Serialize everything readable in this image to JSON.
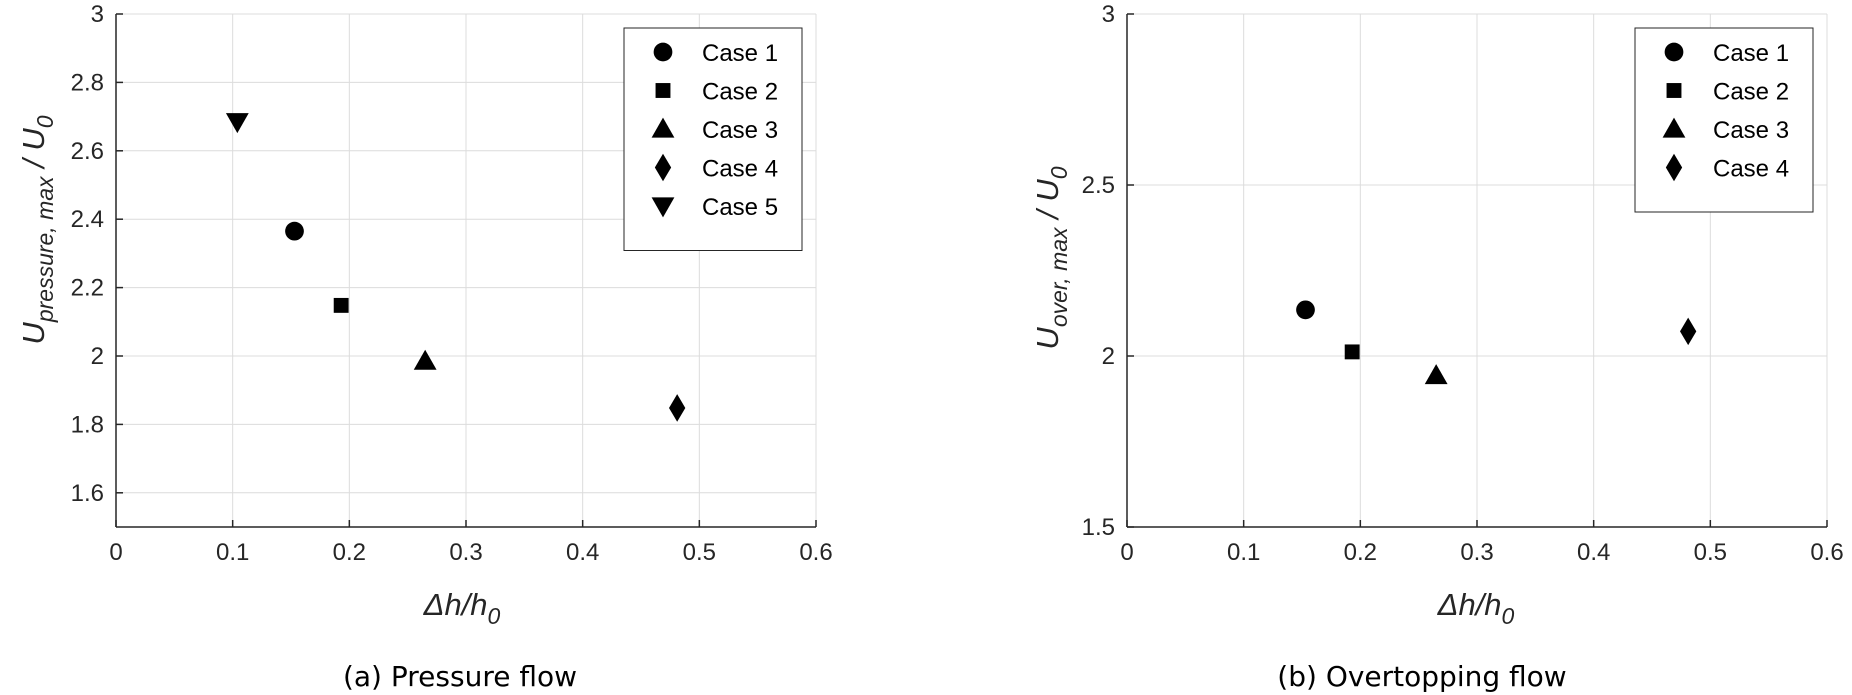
{
  "chart_data": [
    {
      "type": "scatter",
      "caption": "(a) Pressure flow",
      "xlabel": {
        "main": "Δh/h",
        "sub": "0"
      },
      "ylabel": {
        "main": "U",
        "sub": "pressure, max",
        "tail": " / U",
        "tail_sub": "0"
      },
      "xlim": [
        0,
        0.6
      ],
      "ylim": [
        1.5,
        3.0
      ],
      "xticks": [
        0,
        0.1,
        0.2,
        0.3,
        0.4,
        0.5,
        0.6
      ],
      "xtick_labels": [
        "0",
        "0.1",
        "0.2",
        "0.3",
        "0.4",
        "0.5",
        "0.6"
      ],
      "yticks": [
        1.6,
        1.8,
        2.0,
        2.2,
        2.4,
        2.6,
        2.8,
        3.0
      ],
      "ytick_labels": [
        "1.6",
        "1.8",
        "2",
        "2.2",
        "2.4",
        "2.6",
        "2.8",
        "3"
      ],
      "grid": true,
      "legend_position": "top-right",
      "series": [
        {
          "name": "Case 1",
          "marker": "circle",
          "x": 0.153,
          "y": 2.365
        },
        {
          "name": "Case 2",
          "marker": "square",
          "x": 0.193,
          "y": 2.148
        },
        {
          "name": "Case 3",
          "marker": "triangle-up",
          "x": 0.265,
          "y": 1.985
        },
        {
          "name": "Case 4",
          "marker": "diamond",
          "x": 0.481,
          "y": 1.848
        },
        {
          "name": "Case 5",
          "marker": "triangle-down",
          "x": 0.104,
          "y": 2.685
        }
      ]
    },
    {
      "type": "scatter",
      "caption": "(b) Overtopping flow",
      "xlabel": {
        "main": "Δh/h",
        "sub": "0"
      },
      "ylabel": {
        "main": "U",
        "sub": "over, max",
        "tail": " / U",
        "tail_sub": "0"
      },
      "xlim": [
        0,
        0.6
      ],
      "ylim": [
        1.5,
        3.0
      ],
      "xticks": [
        0,
        0.1,
        0.2,
        0.3,
        0.4,
        0.5,
        0.6
      ],
      "xtick_labels": [
        "0",
        "0.1",
        "0.2",
        "0.3",
        "0.4",
        "0.5",
        "0.6"
      ],
      "yticks": [
        1.5,
        2.0,
        2.5,
        3.0
      ],
      "ytick_labels": [
        "1.5",
        "2",
        "2.5",
        "3"
      ],
      "grid": true,
      "legend_position": "top-right",
      "series": [
        {
          "name": "Case 1",
          "marker": "circle",
          "x": 0.153,
          "y": 2.135
        },
        {
          "name": "Case 2",
          "marker": "square",
          "x": 0.193,
          "y": 2.012
        },
        {
          "name": "Case 3",
          "marker": "triangle-up",
          "x": 0.265,
          "y": 1.943
        },
        {
          "name": "Case 4",
          "marker": "diamond",
          "x": 0.481,
          "y": 2.072
        }
      ]
    }
  ],
  "colors": {
    "marker": "#000000",
    "axis": "#262626",
    "grid": "#dcdcdc"
  }
}
